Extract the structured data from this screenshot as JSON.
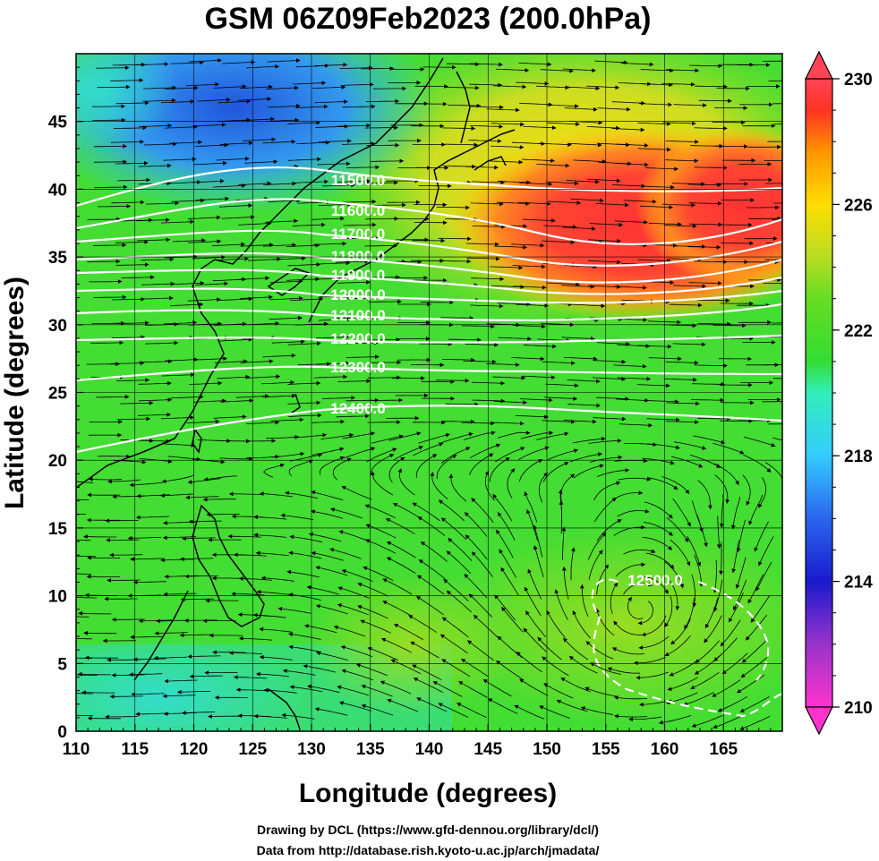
{
  "title": "GSM 06Z09Feb2023 (200.0hPa)",
  "axes": {
    "xlabel": "Longitude (degrees)",
    "ylabel": "Latitude  (degrees)",
    "xlim": [
      110,
      170
    ],
    "ylim": [
      0,
      50
    ],
    "xticks": [
      "110",
      "115",
      "120",
      "125",
      "130",
      "135",
      "140",
      "145",
      "150",
      "155",
      "160",
      "165"
    ],
    "yticks": [
      "0",
      "5",
      "10",
      "15",
      "20",
      "25",
      "30",
      "35",
      "40",
      "45"
    ]
  },
  "colorbar": {
    "ticks": [
      "210",
      "214",
      "218",
      "222",
      "226",
      "230"
    ],
    "min": 210,
    "max": 230,
    "palette": [
      "#ff33cc",
      "#9933cc",
      "#1a1acc",
      "#2a66ee",
      "#33ccff",
      "#33eebb",
      "#33dd33",
      "#66dd22",
      "#bbdd22",
      "#ffdd00",
      "#ff9900",
      "#ff3322",
      "#ff4455"
    ]
  },
  "contours": [
    {
      "label": "11500.0",
      "value": 11500
    },
    {
      "label": "11600.0",
      "value": 11600
    },
    {
      "label": "11700.0",
      "value": 11700
    },
    {
      "label": "11800.0",
      "value": 11800
    },
    {
      "label": "11900.0",
      "value": 11900
    },
    {
      "label": "12000.0",
      "value": 12000
    },
    {
      "label": "12100.0",
      "value": 12100
    },
    {
      "label": "12200.0",
      "value": 12200
    },
    {
      "label": "12300.0",
      "value": 12300
    },
    {
      "label": "12400.0",
      "value": 12400
    },
    {
      "label": "12500.0",
      "value": 12500
    }
  ],
  "credits": {
    "drawing": "Drawing by DCL (https://www.gfd-dennou.org/library/dcl/)",
    "data": "Data from http://database.rish.kyoto-u.ac.jp/arch/jmadata/"
  }
}
